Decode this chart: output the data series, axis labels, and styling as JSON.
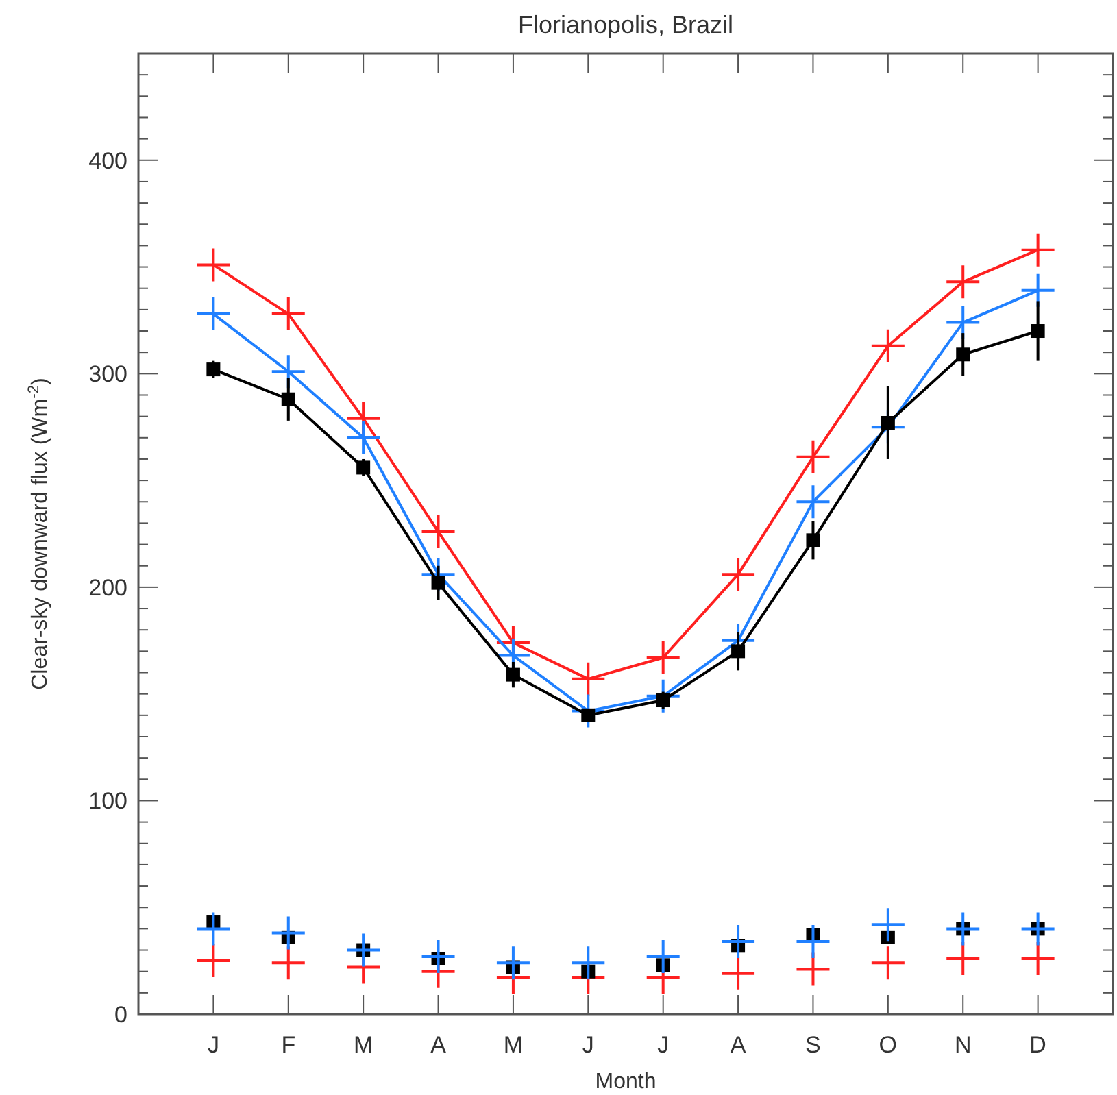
{
  "chart_data": {
    "type": "line",
    "title": "Florianopolis, Brazil",
    "xlabel": "Month",
    "ylabel": "Clear-sky downward flux (Wm$^{-2}$)",
    "categories": [
      "J",
      "F",
      "M",
      "A",
      "M",
      "J",
      "J",
      "A",
      "S",
      "O",
      "N",
      "D"
    ],
    "ylim": [
      0,
      450
    ],
    "yticks": [
      0,
      {
        "value": 10,
        "label": null
      },
      {
        "value": 20,
        "label": null
      },
      {
        "value": 30,
        "label": null
      },
      {
        "value": 40,
        "label": null
      },
      {
        "value": 50,
        "label": null
      },
      {
        "value": 60,
        "label": null
      },
      {
        "value": 70,
        "label": null
      },
      {
        "value": 80,
        "label": null
      },
      {
        "value": 90,
        "label": null
      },
      100,
      {
        "value": 110,
        "label": null
      },
      {
        "value": 120,
        "label": null
      },
      {
        "value": 130,
        "label": null
      },
      {
        "value": 140,
        "label": null
      },
      {
        "value": 150,
        "label": null
      },
      {
        "value": 160,
        "label": null
      },
      {
        "value": 170,
        "label": null
      },
      {
        "value": 180,
        "label": null
      },
      {
        "value": 190,
        "label": null
      },
      200,
      {
        "value": 210,
        "label": null
      },
      {
        "value": 220,
        "label": null
      },
      {
        "value": 230,
        "label": null
      },
      {
        "value": 240,
        "label": null
      },
      {
        "value": 250,
        "label": null
      },
      {
        "value": 260,
        "label": null
      },
      {
        "value": 270,
        "label": null
      },
      {
        "value": 280,
        "label": null
      },
      {
        "value": 290,
        "label": null
      },
      300,
      {
        "value": 310,
        "label": null
      },
      {
        "value": 320,
        "label": null
      },
      {
        "value": 330,
        "label": null
      },
      {
        "value": 340,
        "label": null
      },
      {
        "value": 350,
        "label": null
      },
      {
        "value": 360,
        "label": null
      },
      {
        "value": 370,
        "label": null
      },
      {
        "value": 380,
        "label": null
      },
      {
        "value": 390,
        "label": null
      },
      400,
      {
        "value": 410,
        "label": null
      },
      {
        "value": 420,
        "label": null
      },
      {
        "value": 430,
        "label": null
      },
      {
        "value": 440,
        "label": null
      }
    ],
    "grid": false,
    "series": [
      {
        "type": "line",
        "color": "#ff2020",
        "marker": "cross",
        "values": [
          351,
          328,
          279,
          226,
          174,
          157,
          167,
          206,
          261,
          313,
          343,
          358
        ]
      },
      {
        "type": "line",
        "color": "#2080ff",
        "marker": "cross",
        "values": [
          328,
          301,
          270,
          206,
          168,
          142,
          149,
          175,
          240,
          275,
          324,
          339
        ]
      },
      {
        "type": "line",
        "color": "#000000",
        "marker": "square",
        "values": [
          302,
          288,
          256,
          202,
          159,
          140,
          147,
          170,
          222,
          277,
          309,
          320
        ],
        "errors": [
          4,
          10,
          4,
          8,
          6,
          3,
          4,
          9,
          9,
          17,
          10,
          14
        ]
      },
      {
        "type": "scatter",
        "color": "#ff2020",
        "marker": "cross",
        "values": [
          25,
          24,
          22,
          20,
          17,
          17,
          17,
          19,
          21,
          24,
          26,
          26
        ]
      },
      {
        "type": "scatter",
        "color": "#000000",
        "marker": "square",
        "values": [
          43,
          36,
          30,
          26,
          22,
          20,
          23,
          32,
          37,
          36,
          40,
          40
        ]
      },
      {
        "type": "scatter",
        "color": "#2080ff",
        "marker": "cross",
        "values": [
          40,
          38,
          30,
          27,
          24,
          24,
          27,
          34,
          34,
          42,
          40,
          40
        ]
      }
    ]
  }
}
